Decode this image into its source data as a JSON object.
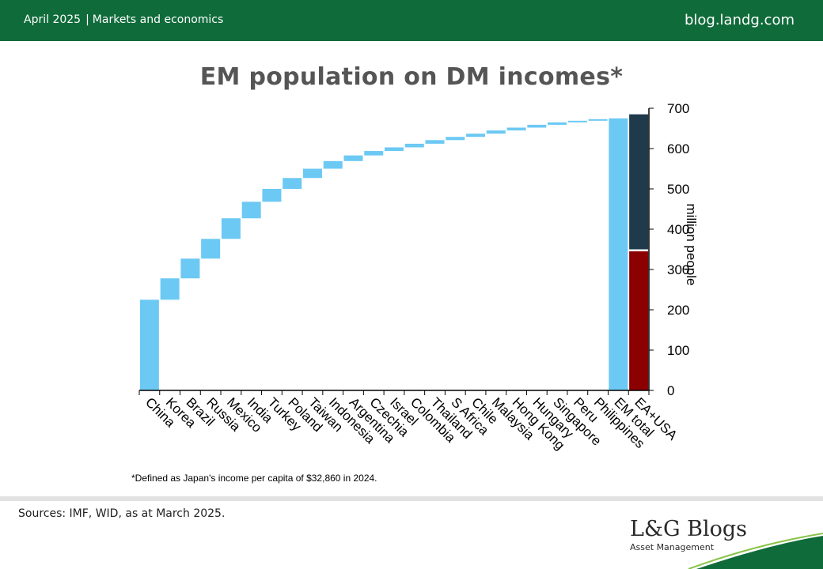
{
  "header": {
    "date": "April 2025",
    "separator": "|",
    "category": "Markets and economics",
    "site": "blog.landg.com"
  },
  "chart_title": "EM population on DM incomes*",
  "footnote": "*Defined as Japan's income per capita of $32,860 in 2024.",
  "sources": "Sources: IMF, WID, as at March 2025.",
  "logo": {
    "brand": "L&G Blogs",
    "sub": "Asset Management"
  },
  "colors": {
    "header_bg": "#0f6b3a",
    "waterfall": "#6cc9f4",
    "ea_usa_top": "#1f3a4a",
    "ea_usa_bottom": "#8b0000"
  },
  "chart_data": {
    "type": "bar",
    "subtype": "waterfall",
    "ylabel": "million people",
    "ylim": [
      0,
      700
    ],
    "yticks": [
      0,
      100,
      200,
      300,
      400,
      500,
      600,
      700
    ],
    "grid": false,
    "axis_side": "right",
    "categories": [
      "China",
      "Korea",
      "Brazil",
      "Russia",
      "Mexico",
      "India",
      "Turkey",
      "Poland",
      "Taiwan",
      "Indonesia",
      "Argentina",
      "Czechia",
      "Israel",
      "Colombia",
      "Thailand",
      "S Africa",
      "Chile",
      "Malaysia",
      "Hong Kong",
      "Hungary",
      "Singapore",
      "Peru",
      "Philippines",
      "EM total",
      "EA+USA"
    ],
    "waterfall_start": [
      0,
      225,
      278,
      327,
      376,
      427,
      468,
      500,
      527,
      550,
      569,
      583,
      594,
      603,
      612,
      621,
      629,
      637,
      645,
      652,
      659,
      665,
      669,
      0
    ],
    "waterfall_end": [
      225,
      278,
      327,
      376,
      427,
      468,
      500,
      527,
      550,
      569,
      583,
      594,
      603,
      612,
      621,
      629,
      637,
      645,
      652,
      659,
      665,
      669,
      673,
      675
    ],
    "stacked_last": [
      {
        "segment": "lower",
        "from": 0,
        "to": 345
      },
      {
        "segment": "upper",
        "from": 350,
        "to": 685
      }
    ]
  }
}
